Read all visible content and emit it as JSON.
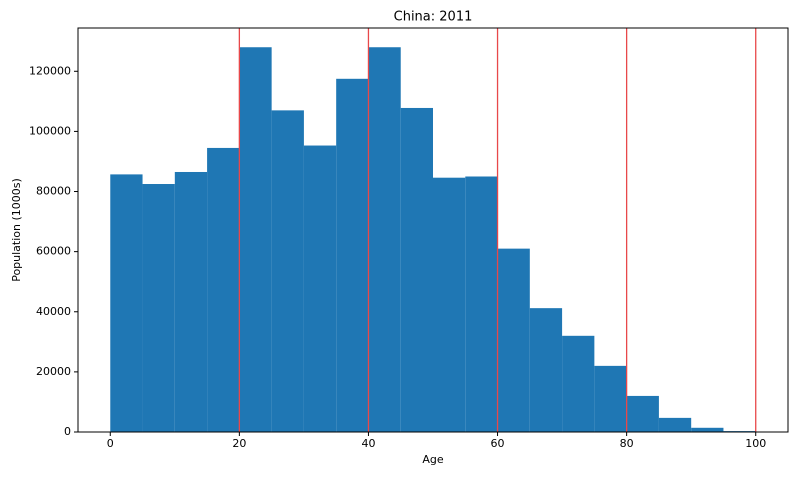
{
  "chart_data": {
    "type": "histogram",
    "title": "China: 2011",
    "x_label": "Age",
    "y_label": "Population (1000s)",
    "bins": [
      0,
      5,
      10,
      15,
      20,
      25,
      30,
      35,
      40,
      45,
      50,
      55,
      60,
      65,
      70,
      75,
      80,
      85,
      90,
      95,
      100
    ],
    "values": [
      85700,
      82500,
      86500,
      94500,
      128000,
      107000,
      95300,
      117500,
      128000,
      107800,
      84600,
      85000,
      61000,
      41200,
      32000,
      22000,
      12000,
      4700,
      1400,
      300
    ],
    "color": "#1f77b4",
    "vlines": [
      20,
      40,
      60,
      80,
      100
    ],
    "vline_color": "#e8484a",
    "xlim": [
      -5,
      105
    ],
    "ylim": [
      0,
      134400
    ],
    "xticks": [
      0,
      20,
      40,
      60,
      80,
      100
    ],
    "yticks": [
      0,
      20000,
      40000,
      60000,
      80000,
      100000,
      120000
    ]
  }
}
